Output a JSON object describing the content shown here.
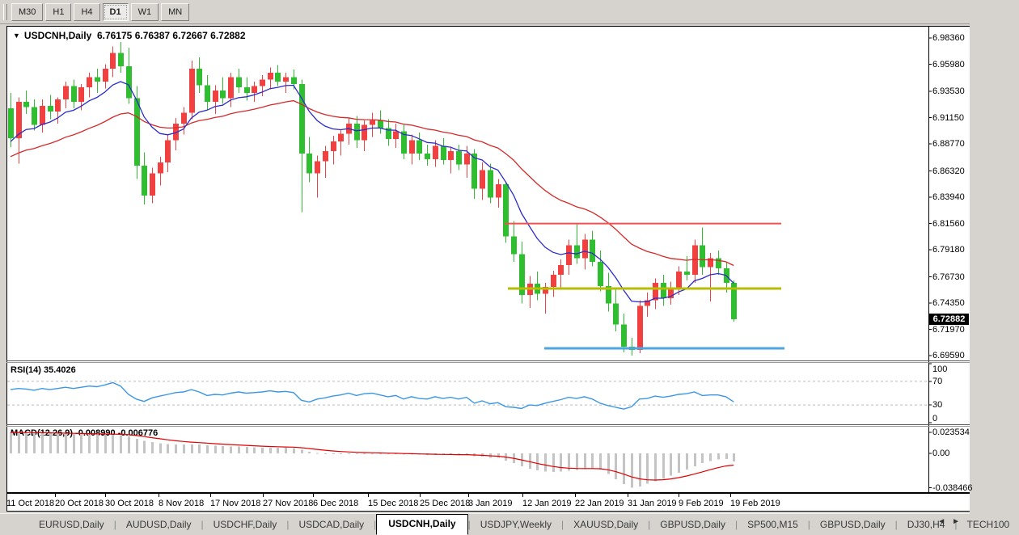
{
  "toolbar": {
    "buttons": [
      "M30",
      "H1",
      "H4",
      "D1",
      "W1",
      "MN"
    ],
    "active": "D1"
  },
  "chart": {
    "title": {
      "dropdown_icon": "▼",
      "symbol": "USDCNH,Daily",
      "open": "6.76175",
      "high": "6.76387",
      "low": "6.72667",
      "close": "6.72882"
    },
    "price_badge": "6.72882",
    "price_axis": [
      "6.98360",
      "6.95980",
      "6.93530",
      "6.91150",
      "6.88770",
      "6.86320",
      "6.83940",
      "6.81560",
      "6.79180",
      "6.76730",
      "6.74350",
      "6.71970",
      "6.69590"
    ],
    "time_axis": {
      "labels": [
        "11 Oct 2018",
        "20 Oct 2018",
        "30 Oct 2018",
        "8 Nov 2018",
        "17 Nov 2018",
        "27 Nov 2018",
        "6 Dec 2018",
        "15 Dec 2018",
        "25 Dec 2018",
        "3 Jan 2019",
        "12 Jan 2019",
        "22 Jan 2019",
        "31 Jan 2019",
        "9 Feb 2019",
        "19 Feb 2019"
      ],
      "x": [
        8,
        68,
        130,
        196,
        260,
        325,
        387,
        455,
        519,
        579,
        646,
        711,
        776,
        839,
        903
      ]
    },
    "rsi_panel": {
      "label": "RSI(14)",
      "value": "35.4026",
      "axis": [
        "100",
        "70",
        "30",
        "0"
      ]
    },
    "macd_panel": {
      "label": "MACD(12,26,9)",
      "value_macd": "-0.008990",
      "value_signal": "-0.006776",
      "axis": [
        "0.023534",
        "0.00",
        "-0.038466"
      ]
    }
  },
  "chart_data": {
    "type": "candlestick",
    "title": "USDCNH,Daily",
    "x_unit": "trading days, 11 Oct 2018 - 19 Feb 2019",
    "color_convention": "red = up candle, green = down candle",
    "ylim_main": [
      6.6901,
      6.9939
    ],
    "candles": [
      [
        6.92,
        6.934,
        6.885,
        6.893
      ],
      [
        6.893,
        6.93,
        6.87,
        6.926
      ],
      [
        6.926,
        6.936,
        6.915,
        6.921
      ],
      [
        6.921,
        6.928,
        6.9,
        6.905
      ],
      [
        6.905,
        6.928,
        6.898,
        6.922
      ],
      [
        6.922,
        6.932,
        6.91,
        6.917
      ],
      [
        6.917,
        6.93,
        6.906,
        6.928
      ],
      [
        6.928,
        6.944,
        6.92,
        6.94
      ],
      [
        6.94,
        6.946,
        6.92,
        6.926
      ],
      [
        6.926,
        6.942,
        6.918,
        6.939
      ],
      [
        6.939,
        6.952,
        6.93,
        6.948
      ],
      [
        6.948,
        6.956,
        6.934,
        6.944
      ],
      [
        6.944,
        6.96,
        6.938,
        6.956
      ],
      [
        6.956,
        6.976,
        6.948,
        6.97
      ],
      [
        6.97,
        6.98,
        6.952,
        6.958
      ],
      [
        6.958,
        6.975,
        6.924,
        6.929
      ],
      [
        6.929,
        6.94,
        6.856,
        6.868
      ],
      [
        6.868,
        6.88,
        6.833,
        6.841
      ],
      [
        6.841,
        6.866,
        6.834,
        6.861
      ],
      [
        6.861,
        6.876,
        6.85,
        6.871
      ],
      [
        6.871,
        6.896,
        6.862,
        6.891
      ],
      [
        6.891,
        6.911,
        6.882,
        6.906
      ],
      [
        6.906,
        6.921,
        6.896,
        6.916
      ],
      [
        6.916,
        6.963,
        6.91,
        6.956
      ],
      [
        6.956,
        6.966,
        6.934,
        6.941
      ],
      [
        6.941,
        6.95,
        6.918,
        6.926
      ],
      [
        6.926,
        6.941,
        6.915,
        6.936
      ],
      [
        6.936,
        6.948,
        6.924,
        6.929
      ],
      [
        6.929,
        6.952,
        6.921,
        6.948
      ],
      [
        6.948,
        6.956,
        6.934,
        6.939
      ],
      [
        6.939,
        6.948,
        6.927,
        6.934
      ],
      [
        6.934,
        6.944,
        6.926,
        6.94
      ],
      [
        6.94,
        6.95,
        6.931,
        6.946
      ],
      [
        6.946,
        6.957,
        6.937,
        6.952
      ],
      [
        6.952,
        6.959,
        6.94,
        6.944
      ],
      [
        6.944,
        6.952,
        6.934,
        6.948
      ],
      [
        6.948,
        6.955,
        6.937,
        6.942
      ],
      [
        6.942,
        6.946,
        6.826,
        6.879
      ],
      [
        6.879,
        6.894,
        6.853,
        6.861
      ],
      [
        6.861,
        6.877,
        6.839,
        6.872
      ],
      [
        6.872,
        6.886,
        6.857,
        6.881
      ],
      [
        6.881,
        6.895,
        6.869,
        6.89
      ],
      [
        6.89,
        6.901,
        6.877,
        6.897
      ],
      [
        6.897,
        6.911,
        6.887,
        6.906
      ],
      [
        6.906,
        6.913,
        6.884,
        6.891
      ],
      [
        6.891,
        6.909,
        6.881,
        6.905
      ],
      [
        6.905,
        6.916,
        6.894,
        6.909
      ],
      [
        6.909,
        6.918,
        6.897,
        6.902
      ],
      [
        6.902,
        6.91,
        6.886,
        6.892
      ],
      [
        6.892,
        6.906,
        6.884,
        6.899
      ],
      [
        6.899,
        6.905,
        6.874,
        6.879
      ],
      [
        6.879,
        6.896,
        6.869,
        6.891
      ],
      [
        6.891,
        6.898,
        6.873,
        6.879
      ],
      [
        6.879,
        6.887,
        6.868,
        6.874
      ],
      [
        6.874,
        6.891,
        6.867,
        6.886
      ],
      [
        6.886,
        6.893,
        6.869,
        6.873
      ],
      [
        6.873,
        6.885,
        6.861,
        6.881
      ],
      [
        6.881,
        6.887,
        6.864,
        6.869
      ],
      [
        6.869,
        6.886,
        6.857,
        6.879
      ],
      [
        6.879,
        6.883,
        6.838,
        6.847
      ],
      [
        6.847,
        6.871,
        6.837,
        6.864
      ],
      [
        6.864,
        6.87,
        6.834,
        6.839
      ],
      [
        6.839,
        6.856,
        6.83,
        6.851
      ],
      [
        6.851,
        6.853,
        6.798,
        6.804
      ],
      [
        6.804,
        6.818,
        6.781,
        6.788
      ],
      [
        6.788,
        6.799,
        6.743,
        6.751
      ],
      [
        6.751,
        6.768,
        6.739,
        6.761
      ],
      [
        6.761,
        6.772,
        6.746,
        6.752
      ],
      [
        6.752,
        6.762,
        6.734,
        6.758
      ],
      [
        6.758,
        6.773,
        6.749,
        6.769
      ],
      [
        6.769,
        6.783,
        6.757,
        6.778
      ],
      [
        6.778,
        6.801,
        6.769,
        6.796
      ],
      [
        6.796,
        6.816,
        6.779,
        6.784
      ],
      [
        6.784,
        6.806,
        6.774,
        6.801
      ],
      [
        6.801,
        6.809,
        6.777,
        6.781
      ],
      [
        6.781,
        6.791,
        6.754,
        6.759
      ],
      [
        6.759,
        6.771,
        6.736,
        6.743
      ],
      [
        6.743,
        6.757,
        6.718,
        6.724
      ],
      [
        6.724,
        6.734,
        6.699,
        6.704
      ],
      [
        6.704,
        6.712,
        6.696,
        6.701
      ],
      [
        6.701,
        6.746,
        6.698,
        6.741
      ],
      [
        6.741,
        6.753,
        6.731,
        6.746
      ],
      [
        6.746,
        6.766,
        6.738,
        6.762
      ],
      [
        6.762,
        6.769,
        6.741,
        6.748
      ],
      [
        6.748,
        6.763,
        6.742,
        6.757
      ],
      [
        6.757,
        6.777,
        6.751,
        6.772
      ],
      [
        6.772,
        6.786,
        6.764,
        6.769
      ],
      [
        6.769,
        6.801,
        6.762,
        6.796
      ],
      [
        6.796,
        6.812,
        6.769,
        6.776
      ],
      [
        6.776,
        6.789,
        6.745,
        6.784
      ],
      [
        6.784,
        6.791,
        6.769,
        6.775
      ],
      [
        6.775,
        6.781,
        6.753,
        6.762
      ],
      [
        6.76175,
        6.76387,
        6.72667,
        6.72882
      ]
    ],
    "ma_fast_period": 10,
    "ma_slow_period": 30,
    "hlines": [
      {
        "name": "resistance",
        "price": 6.8156,
        "color": "#f25050",
        "x1": 624,
        "x2": 966,
        "width": 2
      },
      {
        "name": "support-yellow",
        "price": 6.7567,
        "color": "#b5be00",
        "x1": 628,
        "x2": 966,
        "width": 3
      },
      {
        "name": "support-blue",
        "price": 6.7025,
        "color": "#4da6e0",
        "x1": 673,
        "x2": 970,
        "width": 3
      }
    ],
    "rsi": {
      "period": 14,
      "last": 35.4026,
      "ylim": [
        0,
        100
      ],
      "overbought": 70,
      "oversold": 30,
      "values": [
        56,
        58,
        57,
        55,
        58,
        56,
        58,
        60,
        58,
        60,
        62,
        61,
        64,
        68,
        62,
        48,
        40,
        36,
        42,
        45,
        48,
        51,
        52,
        56,
        52,
        46,
        48,
        47,
        50,
        52,
        50,
        51,
        52,
        54,
        52,
        53,
        51,
        38,
        35,
        40,
        42,
        45,
        47,
        50,
        46,
        49,
        50,
        47,
        44,
        46,
        40,
        44,
        41,
        40,
        44,
        41,
        43,
        40,
        43,
        33,
        37,
        32,
        34,
        27,
        26,
        24,
        30,
        29,
        33,
        36,
        39,
        43,
        41,
        44,
        40,
        33,
        29,
        26,
        23,
        27,
        40,
        41,
        45,
        43,
        45,
        48,
        49,
        52,
        46,
        47,
        47,
        44,
        35.4
      ]
    },
    "macd": {
      "fast": 12,
      "slow": 26,
      "signal_period": 9,
      "last_macd": -0.00899,
      "last_signal": -0.006776,
      "ylim": [
        -0.0425,
        0.0281
      ],
      "histogram": [
        0.0235,
        0.0232,
        0.023,
        0.0228,
        0.0226,
        0.0224,
        0.0222,
        0.022,
        0.0218,
        0.0216,
        0.0214,
        0.0212,
        0.021,
        0.0208,
        0.0205,
        0.019,
        0.0165,
        0.0142,
        0.0126,
        0.0113,
        0.0105,
        0.01,
        0.0098,
        0.01,
        0.0098,
        0.0092,
        0.0086,
        0.0081,
        0.0078,
        0.0075,
        0.0071,
        0.0067,
        0.0064,
        0.0064,
        0.0063,
        0.0062,
        0.006,
        0.004,
        0.0018,
        0.0005,
        -0.0004,
        -0.0006,
        -0.0005,
        -0.0002,
        -0.0005,
        -0.0003,
        0.0,
        -0.0003,
        -0.0006,
        -0.0006,
        -0.0012,
        -0.0012,
        -0.0015,
        -0.0018,
        -0.0016,
        -0.0018,
        -0.0017,
        -0.002,
        -0.0018,
        -0.0032,
        -0.0036,
        -0.0048,
        -0.0052,
        -0.008,
        -0.011,
        -0.0145,
        -0.017,
        -0.019,
        -0.0205,
        -0.021,
        -0.0205,
        -0.0195,
        -0.0185,
        -0.0175,
        -0.0168,
        -0.018,
        -0.023,
        -0.029,
        -0.0345,
        -0.0385,
        -0.037,
        -0.034,
        -0.031,
        -0.028,
        -0.025,
        -0.0215,
        -0.018,
        -0.0145,
        -0.011,
        -0.0085,
        -0.007,
        -0.0065,
        -0.009
      ]
    }
  },
  "colors": {
    "up_candle": "#f24040",
    "down_candle": "#2fbe2f",
    "ma_fast": "#2b2bcc",
    "ma_slow": "#d42a2a",
    "rsi_line": "#3b97e3",
    "rsi_level": "#bbbbbb",
    "macd_hist": "#c4c4c4",
    "macd_signal": "#e00000",
    "badge_bg": "#000000"
  },
  "tabs": {
    "items": [
      "EURUSD,Daily",
      "AUDUSD,Daily",
      "USDCHF,Daily",
      "USDCAD,Daily",
      "USDCNH,Daily",
      "USDJPY,Weekly",
      "XAUUSD,Daily",
      "GBPUSD,Daily",
      "SP500,M15",
      "GBPUSD,Daily",
      "DJ30,H4",
      "TECH100"
    ],
    "active": "USDCNH,Daily",
    "nav_left": "◄",
    "nav_right": "►"
  }
}
